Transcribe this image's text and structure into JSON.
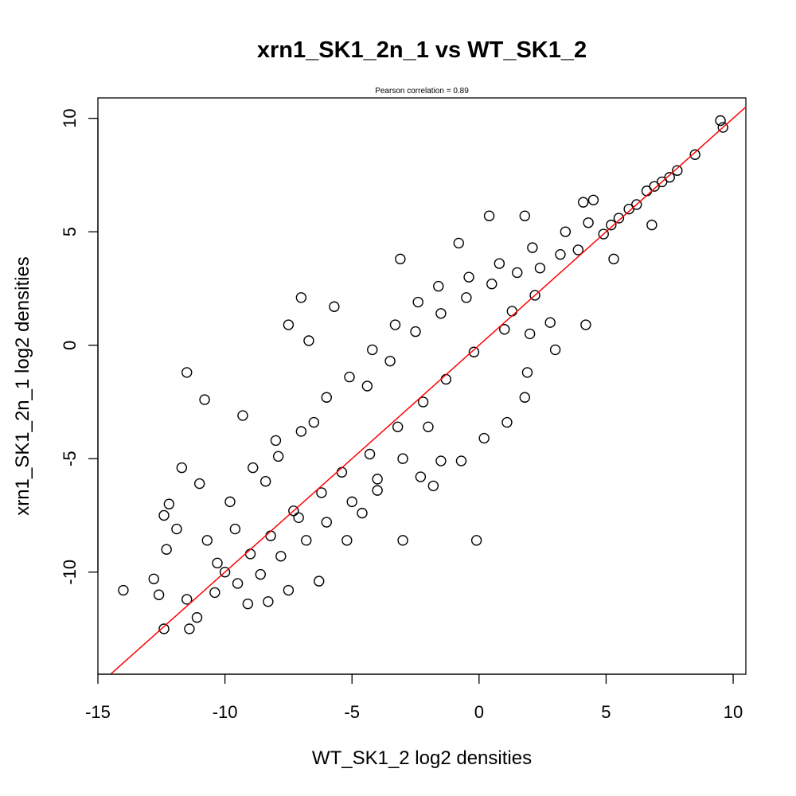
{
  "chart_data": {
    "type": "scatter",
    "title": "xrn1_SK1_2n_1 vs WT_SK1_2",
    "subtitle": "Pearson correlation =  0.89",
    "xlabel": "WT_SK1_2 log2 densities",
    "ylabel": "xrn1_SK1_2n_1 log2 densities",
    "xlim": [
      -15,
      10.5
    ],
    "ylim": [
      -14.5,
      10.9
    ],
    "xticks": [
      -15,
      -10,
      -5,
      0,
      5,
      10
    ],
    "yticks": [
      -10,
      -5,
      0,
      5,
      10
    ],
    "grid": false,
    "fit_line": {
      "slope": 1.0,
      "intercept": 0.0,
      "color": "#ff0000"
    },
    "point_style": {
      "shape": "open-circle",
      "color": "#000000"
    },
    "points": [
      [
        9.5,
        9.9
      ],
      [
        9.6,
        9.6
      ],
      [
        8.5,
        8.4
      ],
      [
        7.8,
        7.7
      ],
      [
        7.5,
        7.4
      ],
      [
        7.2,
        7.2
      ],
      [
        6.9,
        7.0
      ],
      [
        6.6,
        6.8
      ],
      [
        6.8,
        5.3
      ],
      [
        6.2,
        6.2
      ],
      [
        5.9,
        6.0
      ],
      [
        5.5,
        5.6
      ],
      [
        4.1,
        6.3
      ],
      [
        4.5,
        6.4
      ],
      [
        5.2,
        5.3
      ],
      [
        4.9,
        4.9
      ],
      [
        5.3,
        3.8
      ],
      [
        4.2,
        0.9
      ],
      [
        0.4,
        5.7
      ],
      [
        1.8,
        5.7
      ],
      [
        -0.8,
        4.5
      ],
      [
        -3.1,
        3.8
      ],
      [
        -7.0,
        2.1
      ],
      [
        -7.5,
        0.9
      ],
      [
        -5.7,
        1.7
      ],
      [
        -6.7,
        0.2
      ],
      [
        -11.5,
        -1.2
      ],
      [
        -10.8,
        -2.4
      ],
      [
        -9.3,
        -3.1
      ],
      [
        -11.7,
        -5.4
      ],
      [
        -11.0,
        -6.1
      ],
      [
        -12.2,
        -7.0
      ],
      [
        -12.4,
        -7.5
      ],
      [
        -11.9,
        -8.1
      ],
      [
        -12.3,
        -9.0
      ],
      [
        -12.8,
        -10.3
      ],
      [
        -12.6,
        -11.0
      ],
      [
        -14.0,
        -10.8
      ],
      [
        -12.4,
        -12.5
      ],
      [
        -11.4,
        -12.5
      ],
      [
        -11.1,
        -12.0
      ],
      [
        -11.5,
        -11.2
      ],
      [
        -10.0,
        -10.0
      ],
      [
        -9.1,
        -11.4
      ],
      [
        -8.3,
        -11.3
      ],
      [
        -7.5,
        -10.8
      ],
      [
        -6.3,
        -10.4
      ],
      [
        -3.0,
        -8.6
      ],
      [
        -0.1,
        -8.6
      ],
      [
        -0.7,
        -5.1
      ],
      [
        0.2,
        -4.1
      ],
      [
        1.1,
        -3.4
      ],
      [
        1.8,
        -2.3
      ],
      [
        1.9,
        -1.2
      ],
      [
        3.0,
        -0.2
      ],
      [
        2.8,
        1.0
      ],
      [
        2.0,
        0.5
      ],
      [
        1.3,
        1.5
      ],
      [
        -1.5,
        -5.1
      ],
      [
        -1.8,
        -6.2
      ],
      [
        -2.3,
        -5.8
      ],
      [
        -4.0,
        -6.4
      ],
      [
        -4.6,
        -7.4
      ],
      [
        -5.2,
        -8.6
      ],
      [
        -7.1,
        -7.6
      ],
      [
        -8.4,
        -6.0
      ],
      [
        -8.0,
        -4.2
      ],
      [
        -6.5,
        -3.4
      ],
      [
        -4.4,
        -1.8
      ],
      [
        -3.5,
        -0.7
      ],
      [
        -2.5,
        0.6
      ],
      [
        -1.5,
        1.4
      ],
      [
        -0.5,
        2.1
      ],
      [
        0.5,
        2.7
      ],
      [
        1.5,
        3.2
      ],
      [
        2.4,
        3.4
      ],
      [
        3.2,
        4.0
      ],
      [
        3.9,
        4.2
      ],
      [
        2.2,
        2.2
      ],
      [
        1.0,
        0.7
      ],
      [
        -0.2,
        -0.3
      ],
      [
        -1.3,
        -1.5
      ],
      [
        -2.2,
        -2.5
      ],
      [
        -3.2,
        -3.6
      ],
      [
        -4.3,
        -4.8
      ],
      [
        -5.4,
        -5.6
      ],
      [
        -6.2,
        -6.5
      ],
      [
        -7.3,
        -7.3
      ],
      [
        -8.2,
        -8.4
      ],
      [
        -9.0,
        -9.2
      ],
      [
        -9.6,
        -8.1
      ],
      [
        -10.3,
        -9.6
      ],
      [
        -10.7,
        -8.6
      ],
      [
        -9.8,
        -6.9
      ],
      [
        -8.9,
        -5.4
      ],
      [
        -7.9,
        -4.9
      ],
      [
        -7.0,
        -3.8
      ],
      [
        -6.0,
        -2.3
      ],
      [
        -5.1,
        -1.4
      ],
      [
        -4.2,
        -0.2
      ],
      [
        -3.3,
        0.9
      ],
      [
        -2.4,
        1.9
      ],
      [
        -1.6,
        2.6
      ],
      [
        -0.4,
        3.0
      ],
      [
        0.8,
        3.6
      ],
      [
        2.1,
        4.3
      ],
      [
        3.4,
        5.0
      ],
      [
        4.3,
        5.4
      ],
      [
        -2.0,
        -3.6
      ],
      [
        -3.0,
        -5.0
      ],
      [
        -4.0,
        -5.9
      ],
      [
        -5.0,
        -6.9
      ],
      [
        -6.0,
        -7.8
      ],
      [
        -6.8,
        -8.6
      ],
      [
        -7.8,
        -9.3
      ],
      [
        -8.6,
        -10.1
      ],
      [
        -9.5,
        -10.5
      ],
      [
        -10.4,
        -10.9
      ]
    ]
  }
}
